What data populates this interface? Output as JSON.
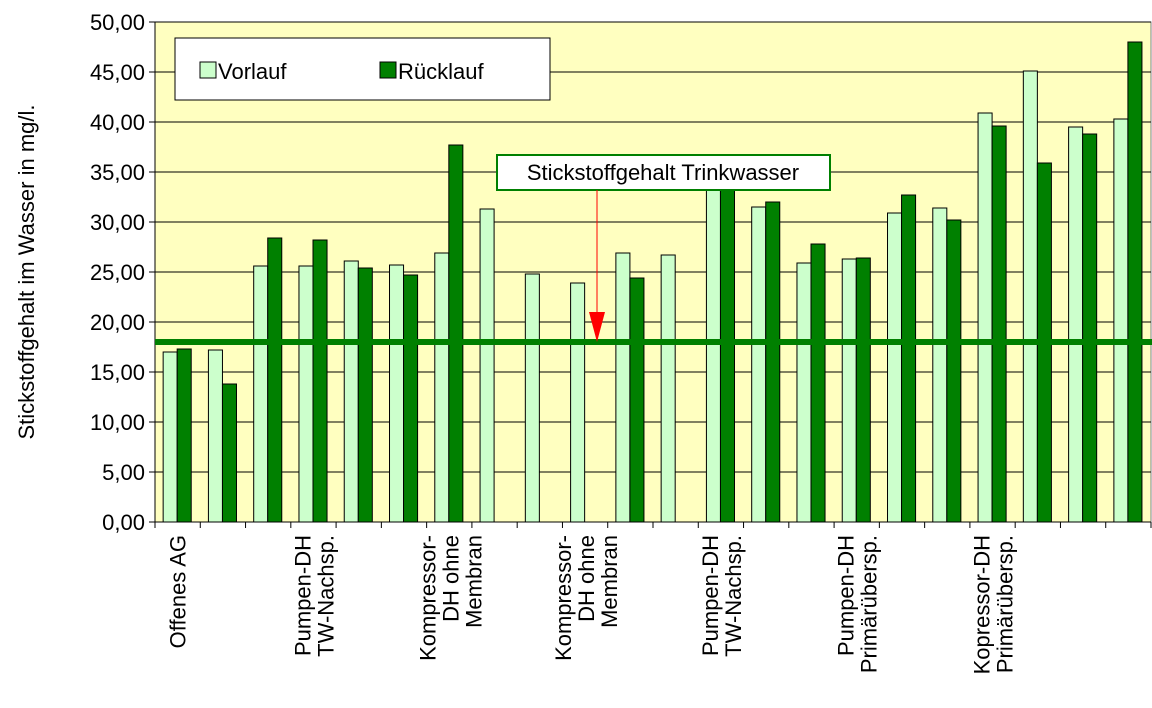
{
  "chart_data": {
    "type": "bar",
    "ylabel": "Stickstoffgehalt im Wasser in mg/l.",
    "categories": [
      "Offenes AG",
      null,
      null,
      "Pumpen-DH\nTW-Nachsp.",
      null,
      null,
      "Kompressor-\nDH ohne\nMembran",
      null,
      null,
      "Kompressor-\nDH ohne\nMembran",
      null,
      null,
      "Pumpen-DH\nTW-Nachsp.",
      null,
      null,
      "Pumpen-DH\nPrimärübersp.",
      null,
      null,
      "Kopressor-DH\nPrimärübersp.",
      null,
      null,
      null
    ],
    "series": [
      {
        "name": "Vorlauf",
        "color": "#ccffcc",
        "values": [
          17.0,
          17.2,
          25.6,
          25.6,
          26.1,
          25.7,
          26.9,
          31.3,
          24.8,
          23.9,
          26.9,
          26.7,
          33.5,
          31.5,
          25.9,
          26.3,
          30.9,
          31.4,
          40.9,
          45.1,
          39.5,
          40.3
        ]
      },
      {
        "name": "Rücklauf",
        "color": "#008000",
        "values": [
          17.3,
          13.8,
          28.4,
          28.2,
          25.4,
          24.7,
          37.7,
          null,
          null,
          null,
          24.4,
          null,
          33.5,
          32.0,
          27.8,
          26.4,
          32.7,
          30.2,
          39.6,
          35.9,
          38.8,
          48.0
        ]
      }
    ],
    "reference_line": {
      "value": 18,
      "color": "#008000"
    },
    "annotation": "Stickstoffgehalt Trinkwasser",
    "ylim": [
      0,
      50
    ],
    "yticks": [
      {
        "value": 0,
        "label": "0,00"
      },
      {
        "value": 5,
        "label": "5,00"
      },
      {
        "value": 10,
        "label": "10,00"
      },
      {
        "value": 15,
        "label": "15,00"
      },
      {
        "value": 20,
        "label": "20,00"
      },
      {
        "value": 25,
        "label": "25,00"
      },
      {
        "value": 30,
        "label": "30,00"
      },
      {
        "value": 35,
        "label": "35,00"
      },
      {
        "value": 40,
        "label": "40,00"
      },
      {
        "value": 45,
        "label": "45,00"
      },
      {
        "value": 50,
        "label": "50,00"
      }
    ],
    "grid": true,
    "legend": "top-left",
    "background": "#ffffc0"
  }
}
